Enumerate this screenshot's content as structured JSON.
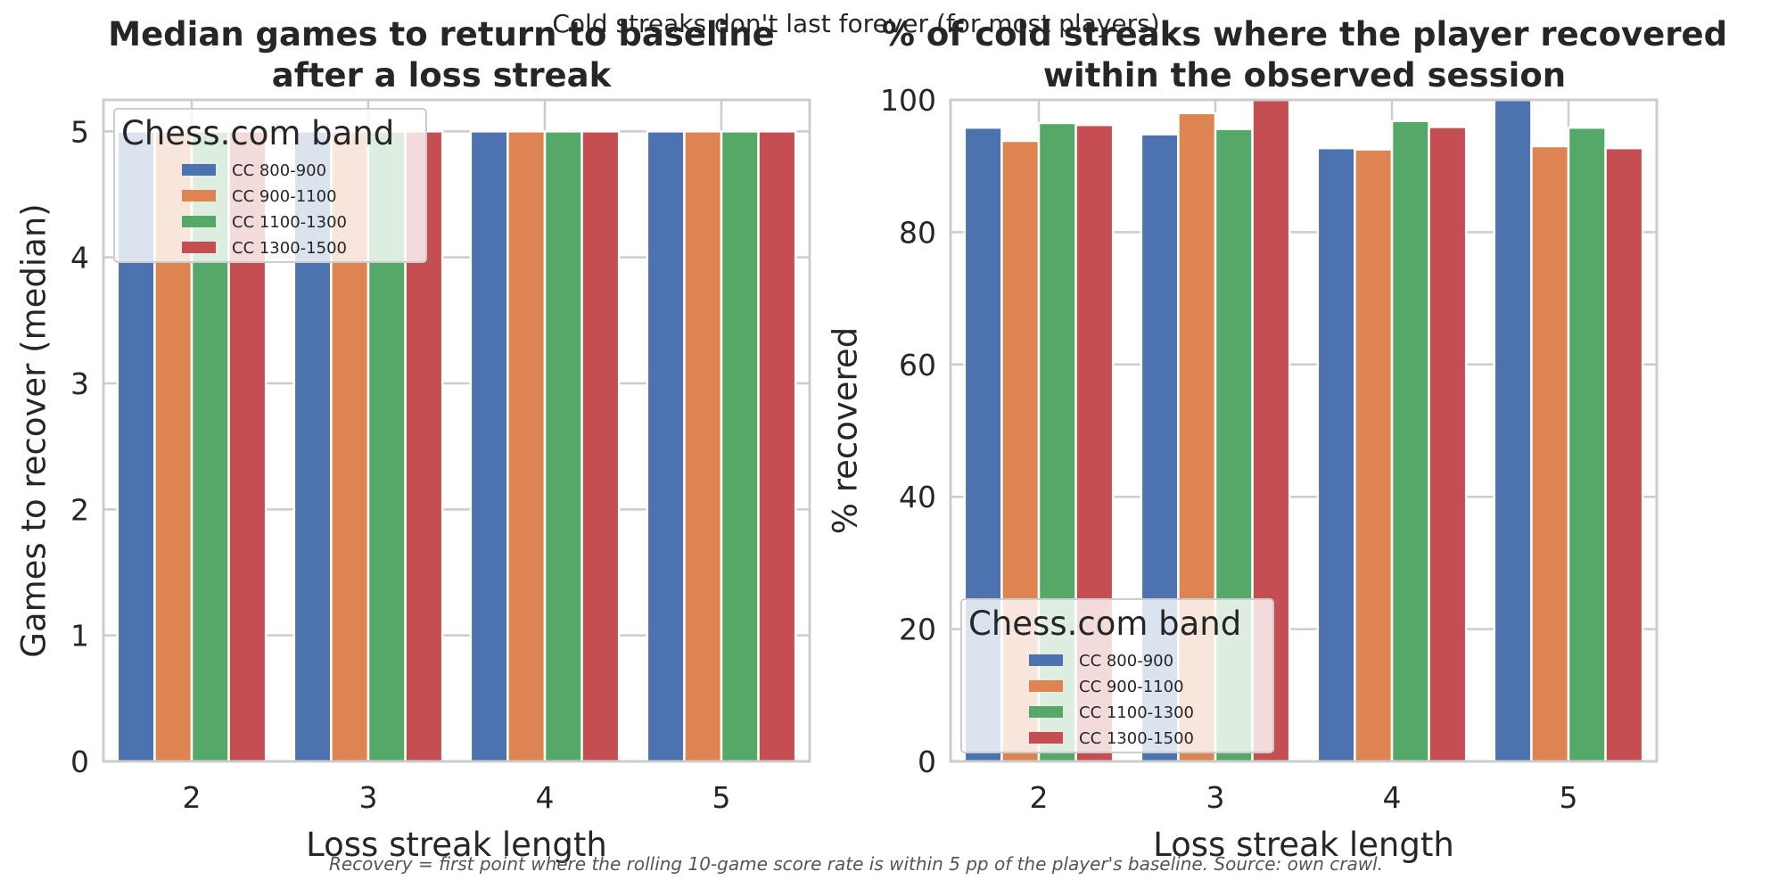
{
  "figure": {
    "suptitle": "Cold streaks don't last forever (for most players)",
    "footnote": "Recovery = first point where the rolling 10-game score rate is within 5 pp of the player's baseline. Source: own crawl."
  },
  "colors": {
    "CC 800-900": "#4c72b0",
    "CC 900-1100": "#dd8452",
    "CC 1100-1300": "#55a868",
    "CC 1300-1500": "#c44e52"
  },
  "chart_data": [
    {
      "type": "bar",
      "title": "Median games to return to baseline\nafter a loss streak",
      "xlabel": "Loss streak length",
      "ylabel": "Games to recover (median)",
      "categories": [
        "2",
        "3",
        "4",
        "5"
      ],
      "ylim": [
        0,
        5.25
      ],
      "yticks": [
        0,
        1,
        2,
        3,
        4,
        5
      ],
      "grid": true,
      "legend": {
        "title": "Chess.com band",
        "placement": "upper-left"
      },
      "series": [
        {
          "name": "CC 800-900",
          "values": [
            5,
            5,
            5,
            5
          ]
        },
        {
          "name": "CC 900-1100",
          "values": [
            5,
            5,
            5,
            5
          ]
        },
        {
          "name": "CC 1100-1300",
          "values": [
            5,
            5,
            5,
            5
          ]
        },
        {
          "name": "CC 1300-1500",
          "values": [
            5,
            5,
            5,
            5
          ]
        }
      ]
    },
    {
      "type": "bar",
      "title": "% of cold streaks where the player recovered\nwithin the observed session",
      "xlabel": "Loss streak length",
      "ylabel": "% recovered",
      "categories": [
        "2",
        "3",
        "4",
        "5"
      ],
      "ylim": [
        0,
        100
      ],
      "yticks": [
        0,
        20,
        40,
        60,
        80,
        100
      ],
      "grid": true,
      "legend": {
        "title": "Chess.com band",
        "placement": "lower-left"
      },
      "series": [
        {
          "name": "CC 800-900",
          "values": [
            95.8,
            94.8,
            92.7,
            100
          ]
        },
        {
          "name": "CC 900-1100",
          "values": [
            93.8,
            98.0,
            92.5,
            93.0
          ]
        },
        {
          "name": "CC 1100-1300",
          "values": [
            96.5,
            95.6,
            96.8,
            95.8
          ]
        },
        {
          "name": "CC 1300-1500",
          "values": [
            96.2,
            100,
            95.9,
            92.7
          ]
        }
      ]
    }
  ]
}
